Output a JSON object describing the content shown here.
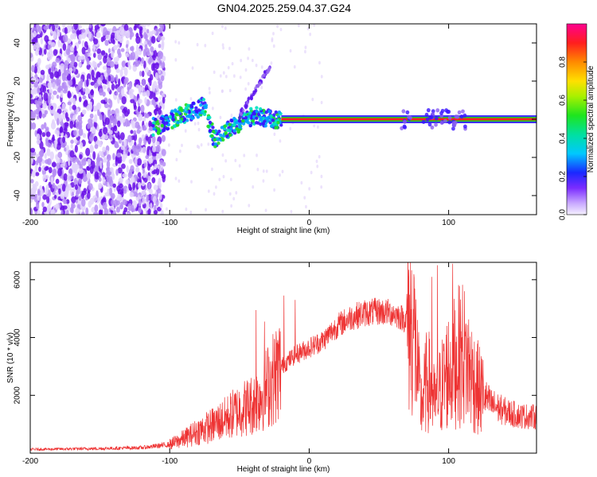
{
  "title": "GN04.2025.259.04.37.G24",
  "chart_data": [
    {
      "type": "heatmap",
      "title": "GN04.2025.259.04.37.G24",
      "xlabel": "Height of straight line (km)",
      "ylabel": "Frequency (Hz)",
      "xlim": [
        -200,
        163
      ],
      "ylim": [
        -50,
        50
      ],
      "xticks": [
        -200,
        -100,
        0,
        100
      ],
      "yticks": [
        -40,
        -20,
        0,
        20,
        40
      ],
      "colorbar": {
        "label": "Normalized spectral amplitude",
        "range": [
          0,
          1
        ],
        "ticks": [
          "0.0",
          "0.2",
          "0.4",
          "0.6",
          "0.8"
        ]
      },
      "features": {
        "noise_region_km": [
          -200,
          -110
        ],
        "transition_track": [
          {
            "x": -110,
            "y": -4
          },
          {
            "x": -95,
            "y": 1
          },
          {
            "x": -75,
            "y": 7
          },
          {
            "x": -68,
            "y": -11
          },
          {
            "x": -55,
            "y": -4
          },
          {
            "x": -40,
            "y": 2
          },
          {
            "x": -25,
            "y": 0
          }
        ],
        "stable_line": {
          "y": 0,
          "from_km": -20,
          "to_km": 163
        }
      }
    },
    {
      "type": "line",
      "xlabel": "Height of straight line (km)",
      "ylabel": "SNR (10 * v/v)",
      "xlim": [
        -200,
        163
      ],
      "ylim": [
        0,
        6600
      ],
      "xticks": [
        -200,
        -100,
        0,
        100
      ],
      "yticks": [
        2000,
        4000,
        6000
      ],
      "series": [
        {
          "name": "SNR",
          "color": "#ee3333",
          "envelope": [
            {
              "x": -200,
              "y": 130
            },
            {
              "x": -150,
              "y": 160
            },
            {
              "x": -120,
              "y": 190
            },
            {
              "x": -100,
              "y": 300
            },
            {
              "x": -90,
              "y": 500
            },
            {
              "x": -80,
              "y": 750
            },
            {
              "x": -70,
              "y": 950
            },
            {
              "x": -60,
              "y": 1200
            },
            {
              "x": -50,
              "y": 1500
            },
            {
              "x": -40,
              "y": 1700
            },
            {
              "x": -30,
              "y": 2300
            },
            {
              "x": -20,
              "y": 3000
            },
            {
              "x": -10,
              "y": 3400
            },
            {
              "x": 0,
              "y": 3650
            },
            {
              "x": 10,
              "y": 3900
            },
            {
              "x": 20,
              "y": 4400
            },
            {
              "x": 30,
              "y": 4700
            },
            {
              "x": 40,
              "y": 4850
            },
            {
              "x": 50,
              "y": 4900
            },
            {
              "x": 60,
              "y": 4850
            },
            {
              "x": 70,
              "y": 4600
            },
            {
              "x": 75,
              "y": 4300
            },
            {
              "x": 80,
              "y": 1600
            },
            {
              "x": 85,
              "y": 2600
            },
            {
              "x": 90,
              "y": 1700
            },
            {
              "x": 95,
              "y": 2300
            },
            {
              "x": 100,
              "y": 2900
            },
            {
              "x": 110,
              "y": 3500
            },
            {
              "x": 120,
              "y": 2300
            },
            {
              "x": 130,
              "y": 1700
            },
            {
              "x": 140,
              "y": 1450
            },
            {
              "x": 150,
              "y": 1300
            },
            {
              "x": 163,
              "y": 1250
            }
          ],
          "spikes": [
            {
              "x": -38,
              "y": 4950
            },
            {
              "x": -32,
              "y": 4550
            },
            {
              "x": -18,
              "y": 5450
            },
            {
              "x": -10,
              "y": 5300
            },
            {
              "x": 88,
              "y": 6100
            },
            {
              "x": 92,
              "y": 6500
            },
            {
              "x": 103,
              "y": 6550
            }
          ]
        }
      ]
    }
  ]
}
